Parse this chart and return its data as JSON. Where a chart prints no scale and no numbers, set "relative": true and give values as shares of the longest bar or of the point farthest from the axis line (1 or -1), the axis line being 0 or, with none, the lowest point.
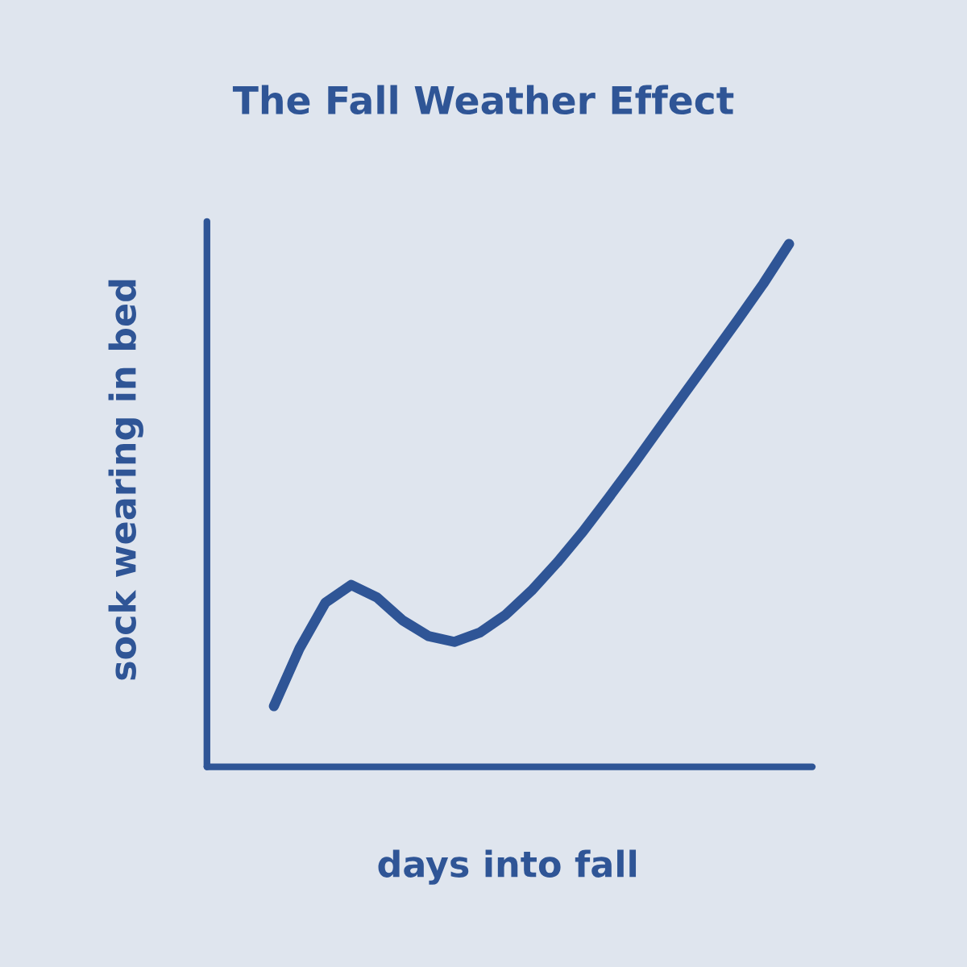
{
  "chart_data": {
    "type": "line",
    "title": "The Fall Weather Effect",
    "xlabel": "days into fall",
    "ylabel": "sock wearing in bed",
    "relative": true,
    "categories": [
      null,
      null,
      null,
      null,
      null,
      null,
      null,
      null,
      null,
      null,
      null,
      null,
      null,
      null,
      null,
      null,
      null,
      null,
      null,
      null,
      null
    ],
    "series": [
      {
        "color": "#2f5596",
        "values": [
          0.116,
          0.227,
          0.314,
          0.348,
          0.324,
          0.28,
          0.25,
          0.239,
          0.257,
          0.291,
          0.337,
          0.391,
          0.45,
          0.515,
          0.581,
          0.65,
          0.718,
          0.786,
          0.854,
          0.924,
          1.0
        ]
      }
    ],
    "grid": false,
    "legend": false,
    "line_style": "solid"
  }
}
